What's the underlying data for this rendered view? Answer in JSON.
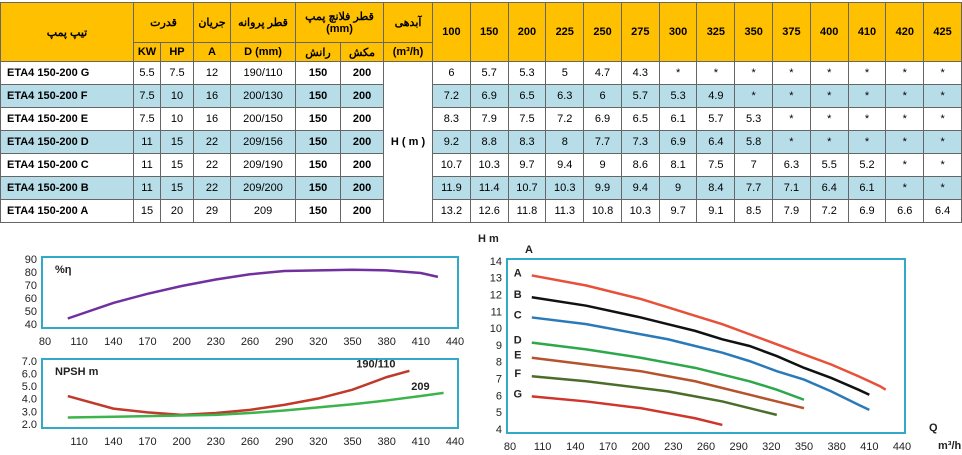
{
  "table": {
    "headers": {
      "pump_type": "تیپ پمپ",
      "power": "قدرت",
      "current": "جریان",
      "impeller": "قطر پروانه",
      "flange": "قطر فلانچ پمپ (mm)",
      "flow": "آبدهی",
      "kw": "KW",
      "hp": "HP",
      "amp": "A",
      "diameter": "D (mm)",
      "discharge": "رانش",
      "suction": "مکش",
      "flow_unit": "(m³/h)",
      "flows": [
        100,
        150,
        200,
        225,
        250,
        275,
        300,
        325,
        350,
        375,
        400,
        410,
        420,
        425
      ]
    },
    "head": "H ( m )",
    "rows": [
      [
        "ETA4 150-200 G",
        "5.5",
        "7.5",
        "12",
        "190/110",
        "150",
        "200",
        "6",
        "5.7",
        "5.3",
        "5",
        "4.7",
        "4.3",
        "*",
        "*",
        "*",
        "*",
        "*",
        "*",
        "*",
        "*"
      ],
      [
        "ETA4 150-200 F",
        "7.5",
        "10",
        "16",
        "200/130",
        "150",
        "200",
        "7.2",
        "6.9",
        "6.5",
        "6.3",
        "6",
        "5.7",
        "5.3",
        "4.9",
        "*",
        "*",
        "*",
        "*",
        "*",
        "*"
      ],
      [
        "ETA4 150-200 E",
        "7.5",
        "10",
        "16",
        "200/150",
        "150",
        "200",
        "8.3",
        "7.9",
        "7.5",
        "7.2",
        "6.9",
        "6.5",
        "6.1",
        "5.7",
        "5.3",
        "*",
        "*",
        "*",
        "*",
        "*"
      ],
      [
        "ETA4 150-200 D",
        "11",
        "15",
        "22",
        "209/156",
        "150",
        "200",
        "9.2",
        "8.8",
        "8.3",
        "8",
        "7.7",
        "7.3",
        "6.9",
        "6.4",
        "5.8",
        "*",
        "*",
        "*",
        "*",
        "*"
      ],
      [
        "ETA4 150-200 C",
        "11",
        "15",
        "22",
        "209/190",
        "150",
        "200",
        "10.7",
        "10.3",
        "9.7",
        "9.4",
        "9",
        "8.6",
        "8.1",
        "7.5",
        "7",
        "6.3",
        "5.5",
        "5.2",
        "*",
        "*"
      ],
      [
        "ETA4 150-200 B",
        "11",
        "15",
        "22",
        "209/200",
        "150",
        "200",
        "11.9",
        "11.4",
        "10.7",
        "10.3",
        "9.9",
        "9.4",
        "9",
        "8.4",
        "7.7",
        "7.1",
        "6.4",
        "6.1",
        "*",
        "*"
      ],
      [
        "ETA4 150-200 A",
        "15",
        "20",
        "29",
        "209",
        "150",
        "200",
        "13.2",
        "12.6",
        "11.8",
        "11.3",
        "10.8",
        "10.3",
        "9.7",
        "9.1",
        "8.5",
        "7.9",
        "7.2",
        "6.9",
        "6.6",
        "6.4"
      ]
    ]
  },
  "chart_data": [
    {
      "type": "line",
      "y_label": "%η",
      "color": "#7030a0",
      "x": [
        100,
        140,
        170,
        200,
        230,
        260,
        290,
        320,
        350,
        380,
        410,
        425
      ],
      "values": [
        45,
        57,
        64,
        70,
        75,
        79,
        81.5,
        82,
        82.5,
        82,
        80,
        77
      ],
      "xlim": [
        80,
        440
      ],
      "xticks": [
        80,
        110,
        140,
        170,
        200,
        230,
        260,
        290,
        320,
        350,
        380,
        410,
        440
      ],
      "ylim": [
        40,
        90
      ],
      "yticks": [
        40,
        50,
        60,
        70,
        80,
        90
      ]
    },
    {
      "type": "line",
      "y_label": "NPSH m",
      "series": [
        {
          "name": "190/110",
          "color": "#c0392b",
          "x": [
            100,
            140,
            170,
            200,
            230,
            260,
            290,
            320,
            350,
            380,
            400
          ],
          "values": [
            4.3,
            3.3,
            3.0,
            2.8,
            2.95,
            3.2,
            3.6,
            4.1,
            4.8,
            5.8,
            6.3
          ]
        },
        {
          "name": "209",
          "color": "#3cb44b",
          "x": [
            100,
            140,
            170,
            200,
            230,
            260,
            290,
            320,
            350,
            380,
            410,
            430
          ],
          "values": [
            2.6,
            2.65,
            2.7,
            2.75,
            2.8,
            2.95,
            3.15,
            3.4,
            3.65,
            3.95,
            4.3,
            4.55
          ]
        }
      ],
      "xlim": [
        80,
        440
      ],
      "xticks": [
        110,
        140,
        170,
        200,
        230,
        260,
        290,
        320,
        350,
        380,
        410,
        440
      ],
      "ylim": [
        2,
        7
      ],
      "yticks": [
        {
          "value": 2,
          "label": "2.0"
        },
        {
          "value": 3,
          "label": "3.0"
        },
        {
          "value": 4,
          "label": "4.0"
        },
        {
          "value": 5,
          "label": "5.0"
        },
        {
          "value": 6,
          "label": "6.0"
        },
        {
          "value": 7,
          "label": "7.0"
        }
      ]
    },
    {
      "type": "line",
      "y_label": "H m",
      "annotation": "A",
      "x_label": "Q",
      "x_unit": "m³/h",
      "x": [
        100,
        150,
        200,
        225,
        250,
        275,
        300,
        325,
        350,
        375,
        400,
        410,
        420,
        425
      ],
      "series": [
        {
          "name": "A",
          "color": "#e8503a",
          "values": [
            13.2,
            12.6,
            11.8,
            11.3,
            10.8,
            10.3,
            9.7,
            9.1,
            8.5,
            7.9,
            7.2,
            6.9,
            6.6,
            6.4
          ]
        },
        {
          "name": "B",
          "color": "#111111",
          "values": [
            11.9,
            11.4,
            10.7,
            10.3,
            9.9,
            9.4,
            9,
            8.4,
            7.7,
            7.1,
            6.4,
            6.1,
            null,
            null
          ]
        },
        {
          "name": "C",
          "color": "#2a7ab9",
          "values": [
            10.7,
            10.3,
            9.7,
            9.4,
            9,
            8.6,
            8.1,
            7.5,
            7,
            6.3,
            5.5,
            5.2,
            null,
            null
          ]
        },
        {
          "name": "D",
          "color": "#2ca84a",
          "values": [
            9.2,
            8.8,
            8.3,
            8,
            7.7,
            7.3,
            6.9,
            6.4,
            5.8,
            null,
            null,
            null,
            null,
            null
          ]
        },
        {
          "name": "E",
          "color": "#b5532c",
          "values": [
            8.3,
            7.9,
            7.5,
            7.2,
            6.9,
            6.5,
            6.1,
            5.7,
            5.3,
            null,
            null,
            null,
            null,
            null
          ]
        },
        {
          "name": "F",
          "color": "#4a6e2a",
          "values": [
            7.2,
            6.9,
            6.5,
            6.3,
            6,
            5.7,
            5.3,
            4.9,
            null,
            null,
            null,
            null,
            null,
            null
          ]
        },
        {
          "name": "G",
          "color": "#d0342c",
          "values": [
            6,
            5.7,
            5.3,
            5,
            4.7,
            4.3,
            null,
            null,
            null,
            null,
            null,
            null,
            null,
            null
          ]
        }
      ],
      "xlim": [
        80,
        440
      ],
      "xticks": [
        80,
        110,
        140,
        170,
        200,
        230,
        260,
        290,
        320,
        350,
        380,
        410,
        440
      ],
      "ylim": [
        4,
        14
      ],
      "yticks": [
        4,
        5,
        6,
        7,
        8,
        9,
        10,
        11,
        12,
        13,
        14
      ]
    }
  ]
}
